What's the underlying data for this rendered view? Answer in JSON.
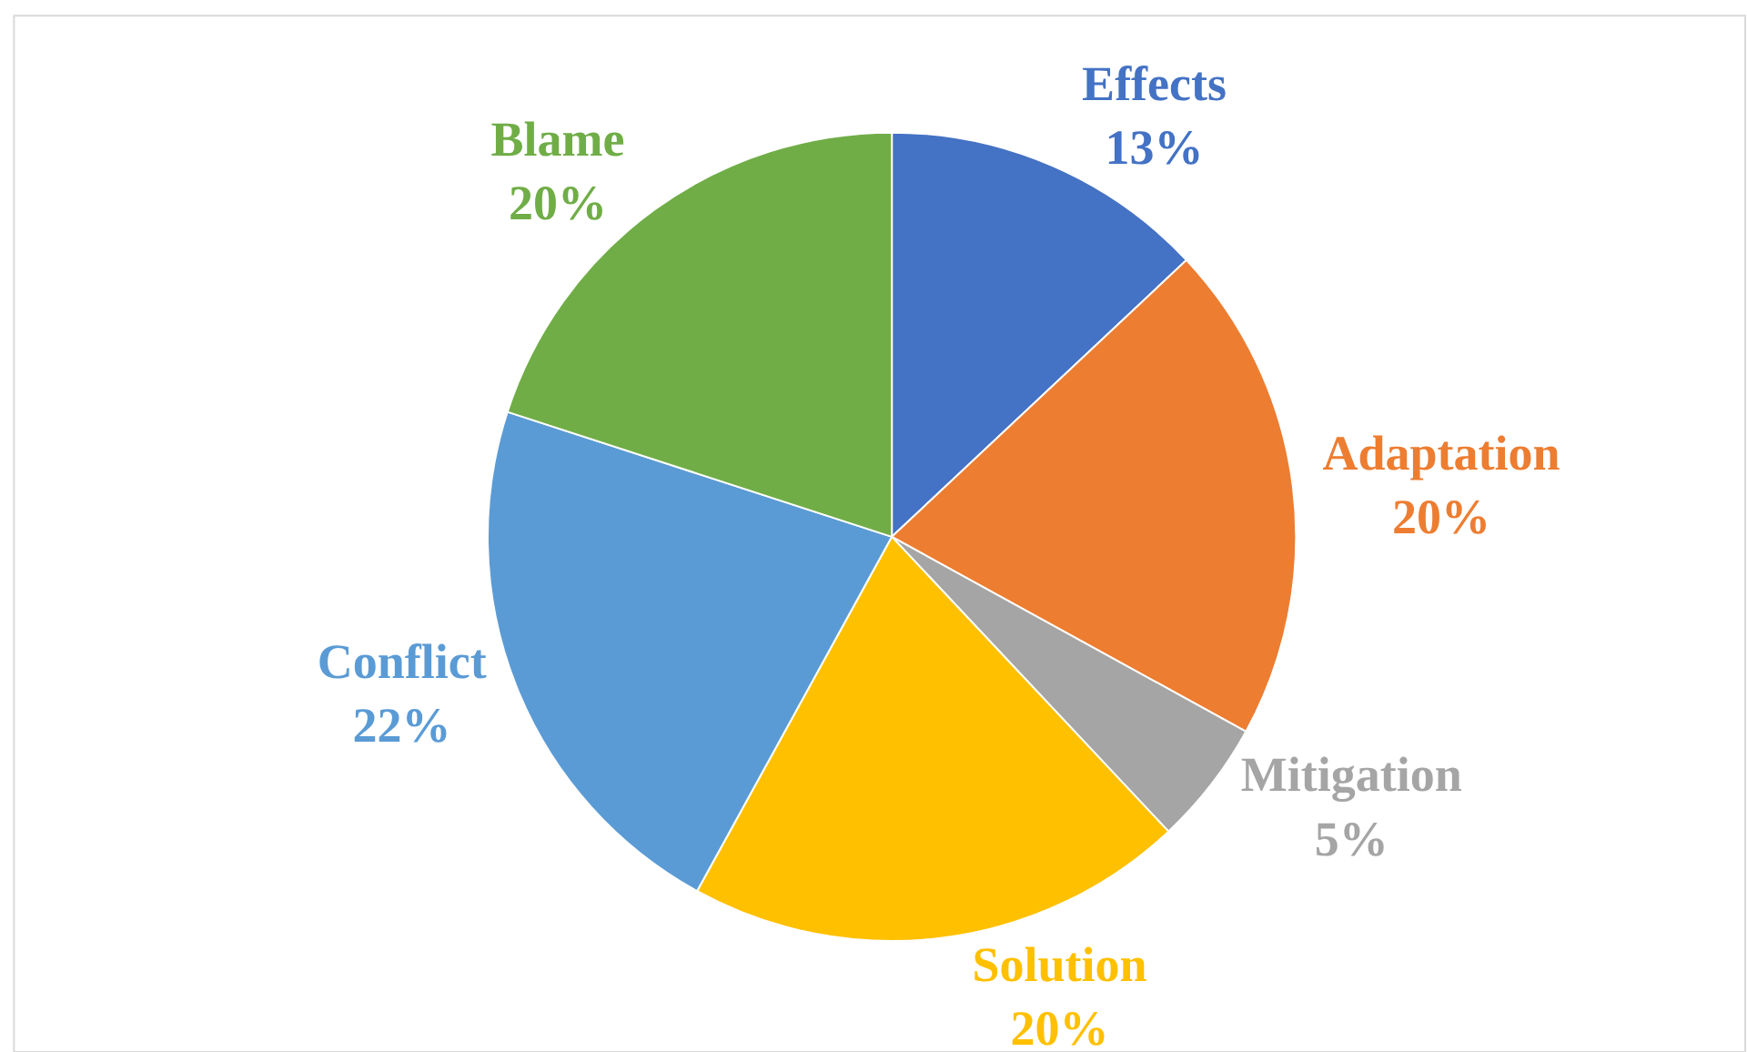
{
  "chart_data": {
    "type": "pie",
    "categories": [
      "Effects",
      "Adaptation",
      "Mitigation",
      "Solution",
      "Conflict",
      "Blame"
    ],
    "values": [
      13,
      20,
      5,
      20,
      22,
      20
    ],
    "value_labels": [
      "13%",
      "20%",
      "5%",
      "20%",
      "22%",
      "20%"
    ],
    "colors": [
      "#4472c4",
      "#ed7d31",
      "#a5a5a5",
      "#ffc000",
      "#5b9bd5",
      "#70ad47"
    ],
    "legend": false
  }
}
